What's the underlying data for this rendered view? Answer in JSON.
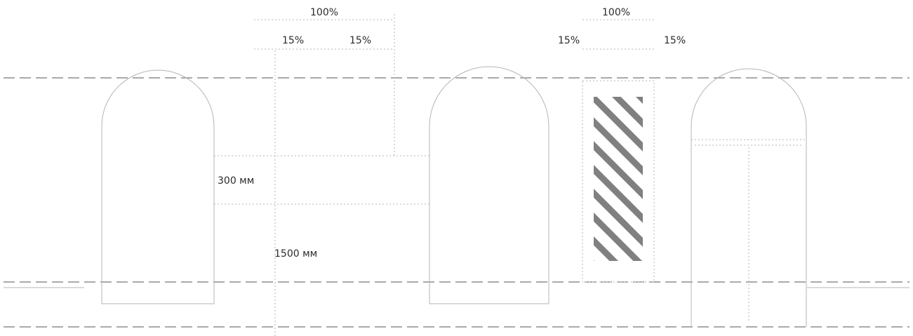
{
  "labels": {
    "width_left": "100%",
    "width_right": "100%",
    "inset_left_1": "15%",
    "inset_left_2": "15%",
    "inset_right_1": "15%",
    "inset_right_2": "15%",
    "height_top": "300 мм",
    "height_bottom": "1500 мм"
  },
  "colors": {
    "line": "#777777",
    "faint": "#b5b5b5",
    "hatch": "#555555"
  }
}
